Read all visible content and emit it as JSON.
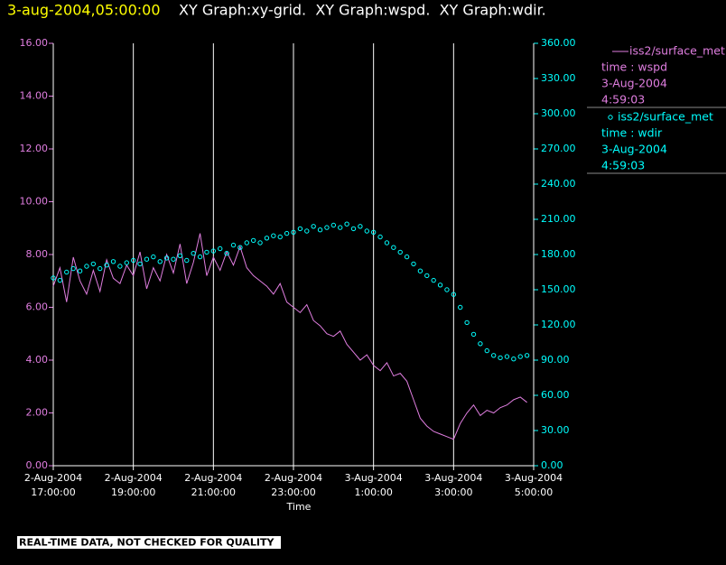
{
  "chart_data": {
    "type": "line-scatter",
    "timestamp": "3-aug-2004,05:00:00",
    "title": "XY Graph:xy-grid.  XY Graph:wspd.  XY Graph:wdir.",
    "x_label": "Time",
    "footer": "REAL-TIME DATA, NOT CHECKED FOR QUALITY",
    "grid": "x",
    "x": [
      "2004-08-02T17:00:00",
      "2004-08-02T17:10:00",
      "2004-08-02T17:20:00",
      "2004-08-02T17:30:00",
      "2004-08-02T17:40:00",
      "2004-08-02T17:50:00",
      "2004-08-02T18:00:00",
      "2004-08-02T18:10:00",
      "2004-08-02T18:20:00",
      "2004-08-02T18:30:00",
      "2004-08-02T18:40:00",
      "2004-08-02T18:50:00",
      "2004-08-02T19:00:00",
      "2004-08-02T19:10:00",
      "2004-08-02T19:20:00",
      "2004-08-02T19:30:00",
      "2004-08-02T19:40:00",
      "2004-08-02T19:50:00",
      "2004-08-02T20:00:00",
      "2004-08-02T20:10:00",
      "2004-08-02T20:20:00",
      "2004-08-02T20:30:00",
      "2004-08-02T20:40:00",
      "2004-08-02T20:50:00",
      "2004-08-02T21:00:00",
      "2004-08-02T21:10:00",
      "2004-08-02T21:20:00",
      "2004-08-02T21:30:00",
      "2004-08-02T21:40:00",
      "2004-08-02T21:50:00",
      "2004-08-02T22:00:00",
      "2004-08-02T22:10:00",
      "2004-08-02T22:20:00",
      "2004-08-02T22:30:00",
      "2004-08-02T22:40:00",
      "2004-08-02T22:50:00",
      "2004-08-02T23:00:00",
      "2004-08-02T23:10:00",
      "2004-08-02T23:20:00",
      "2004-08-02T23:30:00",
      "2004-08-02T23:40:00",
      "2004-08-02T23:50:00",
      "2004-08-03T00:00:00",
      "2004-08-03T00:10:00",
      "2004-08-03T00:20:00",
      "2004-08-03T00:30:00",
      "2004-08-03T00:40:00",
      "2004-08-03T00:50:00",
      "2004-08-03T01:00:00",
      "2004-08-03T01:10:00",
      "2004-08-03T01:20:00",
      "2004-08-03T01:30:00",
      "2004-08-03T01:40:00",
      "2004-08-03T01:50:00",
      "2004-08-03T02:00:00",
      "2004-08-03T02:10:00",
      "2004-08-03T02:20:00",
      "2004-08-03T02:30:00",
      "2004-08-03T02:40:00",
      "2004-08-03T02:50:00",
      "2004-08-03T03:00:00",
      "2004-08-03T03:10:00",
      "2004-08-03T03:20:00",
      "2004-08-03T03:30:00",
      "2004-08-03T03:40:00",
      "2004-08-03T03:50:00",
      "2004-08-03T04:00:00",
      "2004-08-03T04:10:00",
      "2004-08-03T04:20:00",
      "2004-08-03T04:30:00",
      "2004-08-03T04:40:00",
      "2004-08-03T04:50:00"
    ],
    "xlim": [
      "2004-08-02T17:00:00",
      "2004-08-03T05:00:00"
    ],
    "xticks": [
      {
        "value": "2004-08-02T17:00:00",
        "label": [
          "2-Aug-2004",
          "17:00:00"
        ]
      },
      {
        "value": "2004-08-02T19:00:00",
        "label": [
          "2-Aug-2004",
          "19:00:00"
        ]
      },
      {
        "value": "2004-08-02T21:00:00",
        "label": [
          "2-Aug-2004",
          "21:00:00"
        ]
      },
      {
        "value": "2004-08-02T23:00:00",
        "label": [
          "2-Aug-2004",
          "23:00:00"
        ]
      },
      {
        "value": "2004-08-03T01:00:00",
        "label": [
          "3-Aug-2004",
          "1:00:00"
        ]
      },
      {
        "value": "2004-08-03T03:00:00",
        "label": [
          "3-Aug-2004",
          "3:00:00"
        ]
      },
      {
        "value": "2004-08-03T05:00:00",
        "label": [
          "3-Aug-2004",
          "5:00:00"
        ]
      }
    ],
    "ylim": [
      0,
      16
    ],
    "yticks": [
      {
        "value": 0,
        "label": "0.00"
      },
      {
        "value": 2,
        "label": "2.00"
      },
      {
        "value": 4,
        "label": "4.00"
      },
      {
        "value": 6,
        "label": "6.00"
      },
      {
        "value": 8,
        "label": "8.00"
      },
      {
        "value": 10,
        "label": "10.00"
      },
      {
        "value": 12,
        "label": "12.00"
      },
      {
        "value": 14,
        "label": "14.00"
      },
      {
        "value": 16,
        "label": "16.00"
      }
    ],
    "y2lim": [
      0,
      360
    ],
    "y2ticks": [
      {
        "value": 0,
        "label": "0.00"
      },
      {
        "value": 30,
        "label": "30.00"
      },
      {
        "value": 60,
        "label": "60.00"
      },
      {
        "value": 90,
        "label": "90.00"
      },
      {
        "value": 120,
        "label": "120.00"
      },
      {
        "value": 150,
        "label": "150.00"
      },
      {
        "value": 180,
        "label": "180.00"
      },
      {
        "value": 210,
        "label": "210.00"
      },
      {
        "value": 240,
        "label": "240.00"
      },
      {
        "value": 270,
        "label": "270.00"
      },
      {
        "value": 300,
        "label": "300.00"
      },
      {
        "value": 330,
        "label": "330.00"
      },
      {
        "value": 360,
        "label": "360.00"
      }
    ],
    "series": [
      {
        "name": "iss2/surface_met",
        "legend_lines": [
          "time : wspd",
          "3-Aug-2004",
          "4:59:03"
        ],
        "color": "#e07ee0",
        "mark": "line",
        "axis": "y",
        "values": [
          6.8,
          7.5,
          6.2,
          7.9,
          7.0,
          6.5,
          7.4,
          6.6,
          7.8,
          7.1,
          6.9,
          7.6,
          7.2,
          8.1,
          6.7,
          7.5,
          7.0,
          8.0,
          7.3,
          8.4,
          6.9,
          7.7,
          8.8,
          7.2,
          7.9,
          7.4,
          8.1,
          7.6,
          8.3,
          7.5,
          7.2,
          7.0,
          6.8,
          6.5,
          6.9,
          6.2,
          6.0,
          5.8,
          6.1,
          5.5,
          5.3,
          5.0,
          4.9,
          5.1,
          4.6,
          4.3,
          4.0,
          4.2,
          3.8,
          3.6,
          3.9,
          3.4,
          3.5,
          3.2,
          2.5,
          1.8,
          1.5,
          1.3,
          1.2,
          1.1,
          1.0,
          1.6,
          2.0,
          2.3,
          1.9,
          2.1,
          2.0,
          2.2,
          2.3,
          2.5,
          2.6,
          2.4
        ]
      },
      {
        "name": "iss2/surface_met",
        "legend_lines": [
          "time : wdir",
          "3-Aug-2004",
          "4:59:03"
        ],
        "color": "#00ffff",
        "mark": "circle",
        "axis": "y2",
        "values": [
          160,
          158,
          165,
          168,
          166,
          170,
          172,
          168,
          171,
          174,
          170,
          173,
          175,
          172,
          176,
          178,
          174,
          177,
          176,
          179,
          175,
          181,
          178,
          182,
          183,
          185,
          181,
          188,
          186,
          190,
          192,
          190,
          194,
          196,
          195,
          198,
          199,
          202,
          200,
          204,
          201,
          203,
          205,
          203,
          206,
          202,
          204,
          200,
          199,
          195,
          190,
          186,
          182,
          178,
          172,
          166,
          162,
          158,
          154,
          150,
          146,
          135,
          122,
          112,
          104,
          98,
          94,
          92,
          93,
          91,
          93,
          94
        ]
      }
    ]
  }
}
